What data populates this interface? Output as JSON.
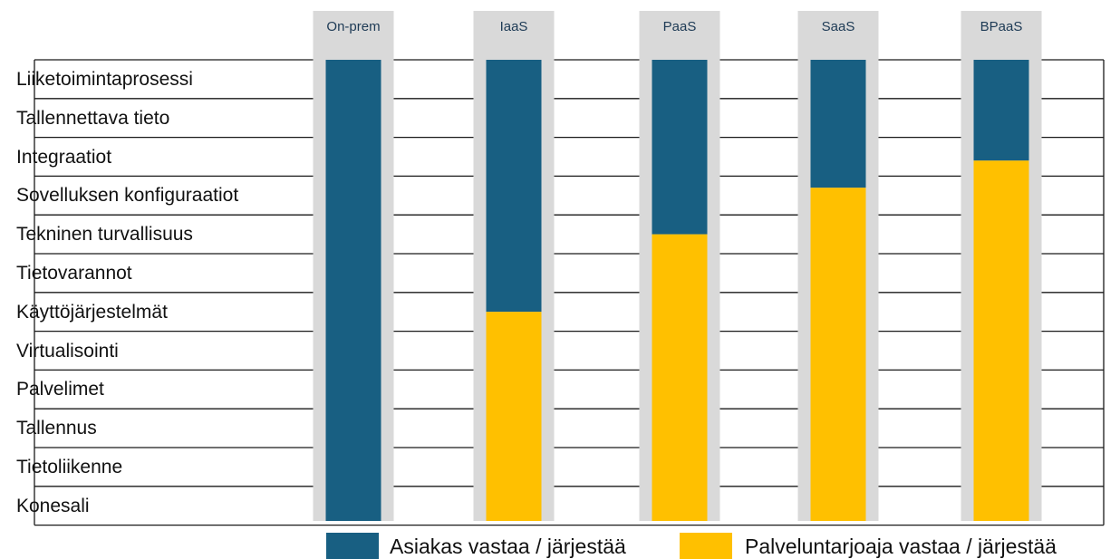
{
  "layers": [
    "Liiketoimintaprosessi",
    "Tallennettava tieto",
    "Integraatiot",
    "Sovelluksen konfiguraatiot",
    "Tekninen turvallisuus",
    "Tietovarannot",
    "Käyttöjärjestelmät",
    "Virtualisointi",
    "Palvelimet",
    "Tallennus",
    "Tietoliikenne",
    "Konesali"
  ],
  "models": [
    {
      "name": "On-prem",
      "customer_layers": 12,
      "provider_layers": 0
    },
    {
      "name": "IaaS",
      "customer_layers": 6.5,
      "provider_layers": 5.5
    },
    {
      "name": "PaaS",
      "customer_layers": 4.5,
      "provider_layers": 7.5
    },
    {
      "name": "SaaS",
      "customer_layers": 3.3,
      "provider_layers": 8.7
    },
    {
      "name": "BPaaS",
      "customer_layers": 2.6,
      "provider_layers": 9.4
    }
  ],
  "legend": {
    "customer": "Asiakas vastaa / järjestää",
    "provider": "Palveluntarjoaja vastaa / järjestää"
  },
  "colors": {
    "customer": "#185f82",
    "provider": "#ffc000",
    "column_background": "#d9d9d9",
    "grid": "#1a1a1a"
  }
}
